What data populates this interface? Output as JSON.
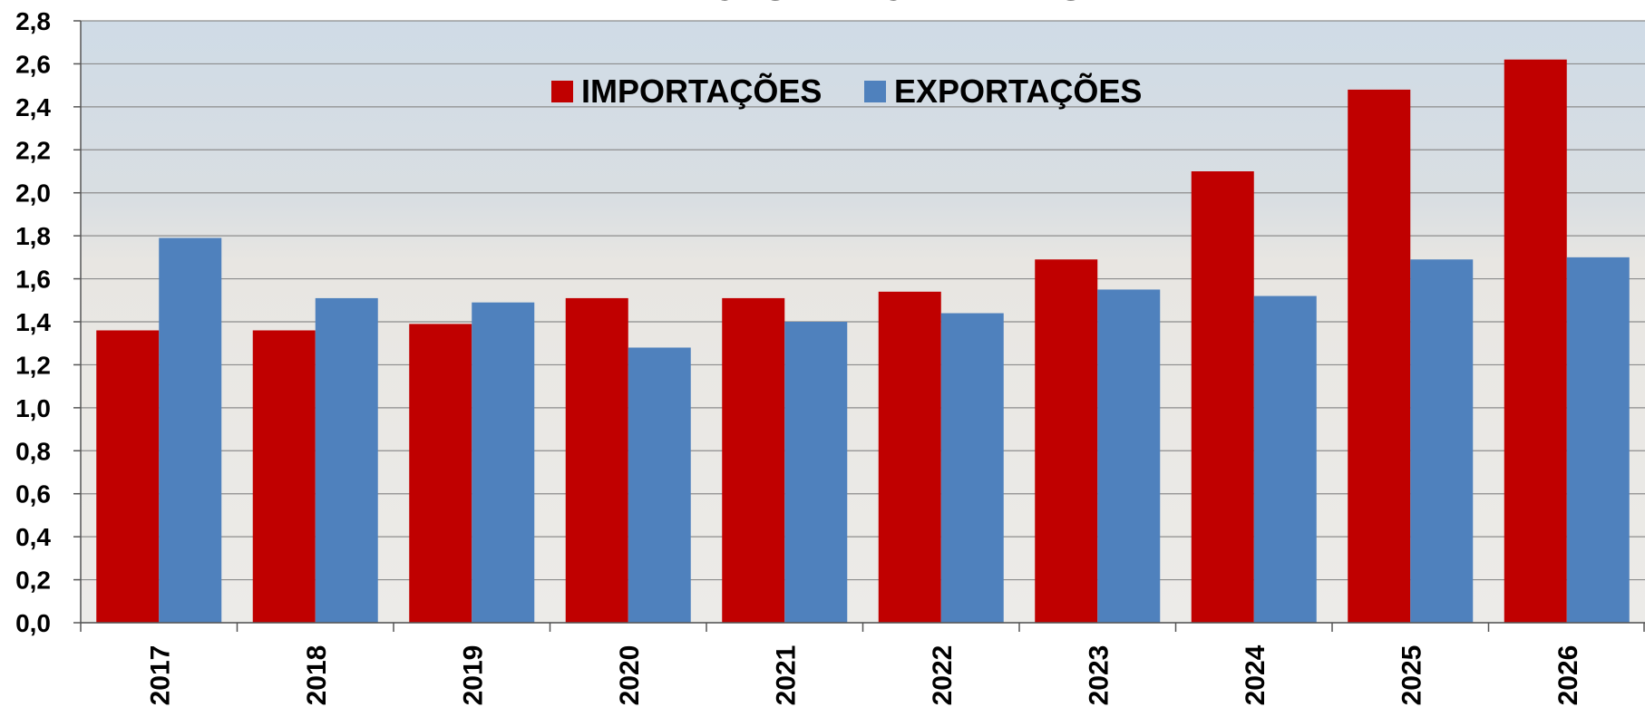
{
  "chart_data": {
    "type": "bar",
    "title": "MILHÕES DE TONELADAS",
    "categories": [
      "2017",
      "2018",
      "2019",
      "2020",
      "2021",
      "2022",
      "2023",
      "2024",
      "2025",
      "2026"
    ],
    "series": [
      {
        "name": "IMPORTAÇÕES",
        "color": "#c00000",
        "values": [
          1.36,
          1.36,
          1.39,
          1.51,
          1.51,
          1.54,
          1.69,
          2.1,
          2.48,
          2.62
        ]
      },
      {
        "name": "EXPORTAÇÕES",
        "color": "#4f81bd",
        "values": [
          1.79,
          1.51,
          1.49,
          1.28,
          1.4,
          1.44,
          1.55,
          1.52,
          1.69,
          1.7
        ]
      }
    ],
    "ylim": [
      0,
      2.8
    ],
    "yticks": [
      {
        "value": 0,
        "label": "0,0"
      },
      {
        "value": 0.2,
        "label": "0,2"
      },
      {
        "value": 0.4,
        "label": "0,4"
      },
      {
        "value": 0.6,
        "label": "0,6"
      },
      {
        "value": 0.8,
        "label": "0,8"
      },
      {
        "value": 1.0,
        "label": "1,0"
      },
      {
        "value": 1.2,
        "label": "1,2"
      },
      {
        "value": 1.4,
        "label": "1,4"
      },
      {
        "value": 1.6,
        "label": "1,6"
      },
      {
        "value": 1.8,
        "label": "1,8"
      },
      {
        "value": 2.0,
        "label": "2,0"
      },
      {
        "value": 2.2,
        "label": "2,2"
      },
      {
        "value": 2.4,
        "label": "2,4"
      },
      {
        "value": 2.6,
        "label": "2,6"
      },
      {
        "value": 2.8,
        "label": "2,8"
      }
    ],
    "grid": true
  }
}
